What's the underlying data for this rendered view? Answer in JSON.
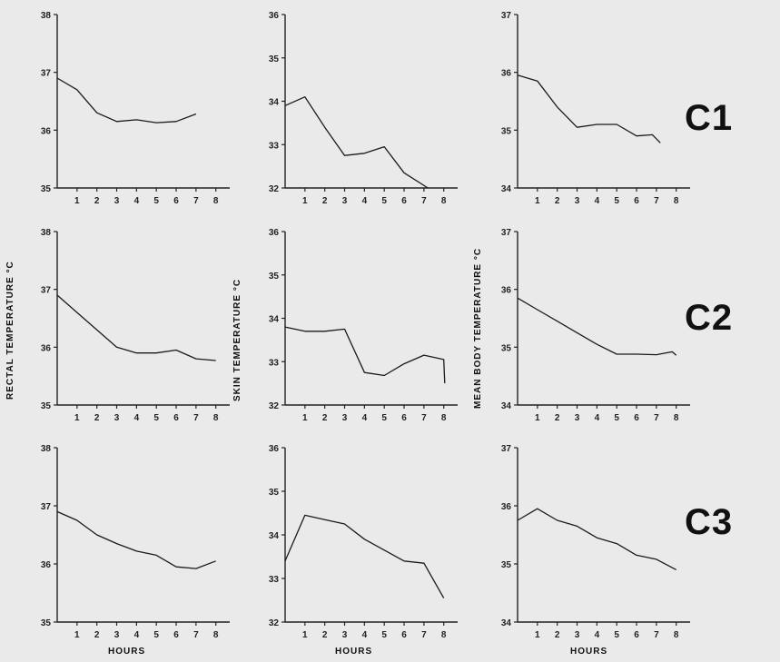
{
  "row_labels": [
    "C1",
    "C2",
    "C3"
  ],
  "y_axis_labels": [
    "RECTAL  TEMPERATURE  °C",
    "SKIN  TEMPERATURE  °C",
    "MEAN  BODY  TEMPERATURE  °C"
  ],
  "x_axis_label": "HOURS",
  "chart_data": [
    {
      "type": "line",
      "row": "C1",
      "measure": "rectal",
      "xlabel": "",
      "ylabel": "",
      "ylim": [
        35,
        38
      ],
      "xlim": [
        0,
        8.7
      ],
      "yticks": [
        35,
        36,
        37,
        38
      ],
      "xticks": [
        1,
        2,
        3,
        4,
        5,
        6,
        7,
        8
      ],
      "x": [
        0,
        1,
        2,
        3,
        4,
        5,
        6,
        7
      ],
      "y": [
        36.9,
        36.7,
        36.3,
        36.15,
        36.18,
        36.13,
        36.15,
        36.28
      ]
    },
    {
      "type": "line",
      "row": "C1",
      "measure": "skin",
      "xlabel": "",
      "ylabel": "",
      "ylim": [
        32,
        36
      ],
      "xlim": [
        0,
        8.7
      ],
      "yticks": [
        32,
        33,
        34,
        35,
        36
      ],
      "xticks": [
        1,
        2,
        3,
        4,
        5,
        6,
        7,
        8
      ],
      "x": [
        0,
        1,
        2,
        3,
        4,
        5,
        6,
        7.2
      ],
      "y": [
        33.9,
        34.1,
        33.4,
        32.75,
        32.8,
        32.95,
        32.35,
        32.0
      ]
    },
    {
      "type": "line",
      "row": "C1",
      "measure": "mean_body",
      "xlabel": "",
      "ylabel": "",
      "ylim": [
        34,
        37
      ],
      "xlim": [
        0,
        8.7
      ],
      "yticks": [
        34,
        35,
        36,
        37
      ],
      "xticks": [
        1,
        2,
        3,
        4,
        5,
        6,
        7,
        8
      ],
      "x": [
        0,
        1,
        2,
        3,
        4,
        5,
        6,
        6.8,
        7.2
      ],
      "y": [
        35.95,
        35.85,
        35.4,
        35.05,
        35.1,
        35.1,
        34.9,
        34.92,
        34.78
      ]
    },
    {
      "type": "line",
      "row": "C2",
      "measure": "rectal",
      "xlabel": "",
      "ylabel": "RECTAL  TEMPERATURE  °C",
      "ylim": [
        35,
        38
      ],
      "xlim": [
        0,
        8.7
      ],
      "yticks": [
        35,
        36,
        37,
        38
      ],
      "xticks": [
        1,
        2,
        3,
        4,
        5,
        6,
        7,
        8
      ],
      "x": [
        0,
        1,
        2,
        3,
        4,
        5,
        6,
        7,
        8
      ],
      "y": [
        36.9,
        36.6,
        36.3,
        36.0,
        35.9,
        35.9,
        35.95,
        35.8,
        35.77
      ]
    },
    {
      "type": "line",
      "row": "C2",
      "measure": "skin",
      "xlabel": "",
      "ylabel": "SKIN  TEMPERATURE  °C",
      "ylim": [
        32,
        36
      ],
      "xlim": [
        0,
        8.7
      ],
      "yticks": [
        32,
        33,
        34,
        35,
        36
      ],
      "xticks": [
        1,
        2,
        3,
        4,
        5,
        6,
        7,
        8
      ],
      "x": [
        0,
        1,
        2,
        3,
        4,
        5,
        6,
        7,
        8,
        8.05
      ],
      "y": [
        33.8,
        33.7,
        33.7,
        33.75,
        32.75,
        32.68,
        32.95,
        33.15,
        33.05,
        32.5
      ]
    },
    {
      "type": "line",
      "row": "C2",
      "measure": "mean_body",
      "xlabel": "",
      "ylabel": "MEAN  BODY  TEMPERATURE  °C",
      "ylim": [
        34,
        37
      ],
      "xlim": [
        0,
        8.7
      ],
      "yticks": [
        34,
        35,
        36,
        37
      ],
      "xticks": [
        1,
        2,
        3,
        4,
        5,
        6,
        7,
        8
      ],
      "x": [
        0,
        1,
        2,
        3,
        4,
        5,
        6,
        7,
        7.8,
        8.0
      ],
      "y": [
        35.85,
        35.65,
        35.45,
        35.25,
        35.05,
        34.88,
        34.88,
        34.87,
        34.92,
        34.86
      ]
    },
    {
      "type": "line",
      "row": "C3",
      "measure": "rectal",
      "xlabel": "HOURS",
      "ylabel": "",
      "ylim": [
        35,
        38
      ],
      "xlim": [
        0,
        8.7
      ],
      "yticks": [
        35,
        36,
        37,
        38
      ],
      "xticks": [
        1,
        2,
        3,
        4,
        5,
        6,
        7,
        8
      ],
      "x": [
        0,
        1,
        2,
        3,
        4,
        5,
        6,
        7,
        8
      ],
      "y": [
        36.9,
        36.75,
        36.5,
        36.35,
        36.22,
        36.15,
        35.95,
        35.92,
        36.05
      ]
    },
    {
      "type": "line",
      "row": "C3",
      "measure": "skin",
      "xlabel": "HOURS",
      "ylabel": "",
      "ylim": [
        32,
        36
      ],
      "xlim": [
        0,
        8.7
      ],
      "yticks": [
        32,
        33,
        34,
        35,
        36
      ],
      "xticks": [
        1,
        2,
        3,
        4,
        5,
        6,
        7,
        8
      ],
      "x": [
        0,
        1,
        2,
        3,
        4,
        5,
        6,
        7,
        8
      ],
      "y": [
        33.4,
        34.45,
        34.35,
        34.25,
        33.9,
        33.65,
        33.4,
        33.35,
        32.55
      ]
    },
    {
      "type": "line",
      "row": "C3",
      "measure": "mean_body",
      "xlabel": "HOURS",
      "ylabel": "",
      "ylim": [
        34,
        37
      ],
      "xlim": [
        0,
        8.7
      ],
      "yticks": [
        34,
        35,
        36,
        37
      ],
      "xticks": [
        1,
        2,
        3,
        4,
        5,
        6,
        7,
        8
      ],
      "x": [
        0,
        1,
        2,
        3,
        4,
        5,
        6,
        7,
        8
      ],
      "y": [
        35.75,
        35.95,
        35.75,
        35.65,
        35.45,
        35.35,
        35.15,
        35.08,
        34.9
      ]
    }
  ]
}
